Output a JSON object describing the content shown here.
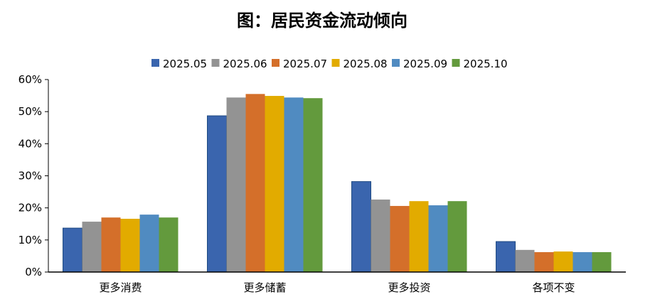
{
  "chart_data": {
    "type": "bar",
    "title": "图：居民资金流动倾向",
    "categories": [
      "更多消费",
      "更多储蓄",
      "更多投资",
      "各项不变"
    ],
    "series": [
      {
        "name": "2025.05",
        "color": "#3a65ae",
        "values": [
          13.7,
          48.7,
          28.2,
          9.5
        ]
      },
      {
        "name": "2025.06",
        "color": "#939393",
        "values": [
          15.7,
          54.4,
          22.6,
          6.9
        ]
      },
      {
        "name": "2025.07",
        "color": "#d46f2a",
        "values": [
          17.0,
          55.5,
          20.6,
          6.2
        ]
      },
      {
        "name": "2025.08",
        "color": "#e2ab00",
        "values": [
          16.6,
          54.9,
          22.1,
          6.4
        ]
      },
      {
        "name": "2025.09",
        "color": "#508bc1",
        "values": [
          17.9,
          54.4,
          20.8,
          6.2
        ]
      },
      {
        "name": "2025.10",
        "color": "#639a3d",
        "values": [
          17.0,
          54.2,
          22.1,
          6.2
        ]
      }
    ],
    "ylim": [
      0,
      60
    ],
    "yticks": [
      "0%",
      "10%",
      "20%",
      "30%",
      "40%",
      "50%",
      "60%"
    ],
    "unit": "%",
    "grid": false,
    "legend": "top",
    "xlabel": "",
    "ylabel": ""
  }
}
